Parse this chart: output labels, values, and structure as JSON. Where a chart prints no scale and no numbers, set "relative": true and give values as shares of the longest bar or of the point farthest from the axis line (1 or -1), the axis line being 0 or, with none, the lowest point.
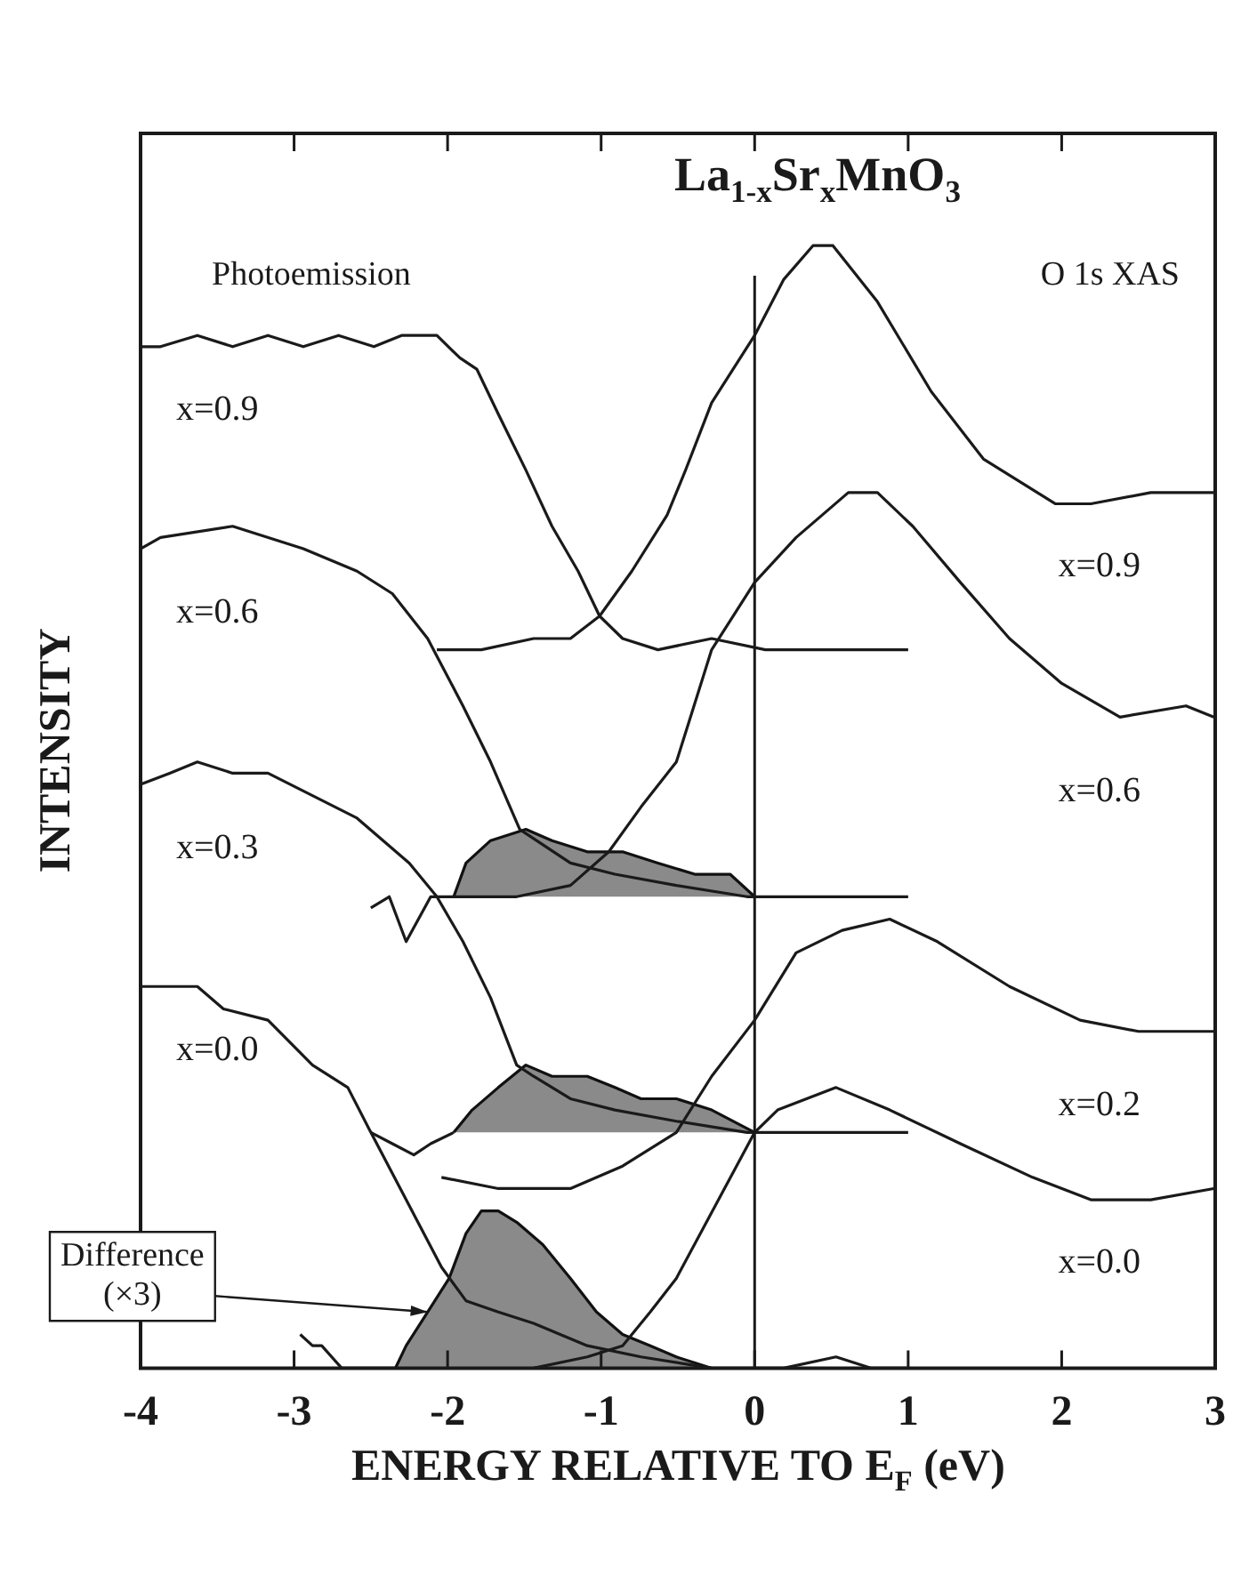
{
  "chart_data": {
    "type": "line",
    "title": "La$_{1-x}$Sr$_{x}$MnO$_{3}$",
    "xlabel": "ENERGY RELATIVE TO E$_{F}$ (eV)",
    "ylabel": "INTENSITY",
    "relative": true,
    "xlim": [
      -4,
      3
    ],
    "xticks": [
      -4,
      -3,
      -2,
      -1,
      0,
      1,
      2,
      3
    ],
    "annotations": [
      "Photoemission",
      "O 1s XAS",
      {
        "text": "Difference\n(×3)",
        "x": -2.13,
        "y": 0.05
      }
    ],
    "ref_lines": [
      {
        "axis": "x",
        "value": 0,
        "color": "#1a1a1a"
      }
    ],
    "series": [
      {
        "name": "x=0.9",
        "color": "#1a1a1a",
        "x": [
          -4,
          -3.87,
          -3.63,
          -3.4,
          -3.17,
          -2.94,
          -2.71,
          -2.48,
          -2.3,
          -2.07,
          -1.92,
          -1.81,
          -1.67,
          -1.49,
          -1.32,
          -1.15,
          -1.01,
          -0.86,
          -0.63,
          -0.28,
          0.07,
          0.76,
          1.0
        ],
        "values": [
          0.91,
          0.91,
          0.92,
          0.91,
          0.92,
          0.91,
          0.92,
          0.91,
          0.92,
          0.92,
          0.9,
          0.89,
          0.85,
          0.8,
          0.75,
          0.71,
          0.67,
          0.65,
          0.64,
          0.65,
          0.64,
          0.64,
          0.64
        ]
      },
      {
        "name": "x=0.9",
        "color": "#1a1a1a",
        "x": [
          -2.07,
          -1.78,
          -1.44,
          -1.2,
          -1.01,
          -0.8,
          -0.57,
          -0.45,
          -0.28,
          0,
          0.19,
          0.38,
          0.51,
          0.8,
          1.15,
          1.49,
          1.96,
          2.19,
          2.58,
          2.99
        ],
        "values": [
          0.64,
          0.64,
          0.65,
          0.65,
          0.67,
          0.71,
          0.76,
          0.8,
          0.86,
          0.92,
          0.97,
          1.0,
          1.0,
          0.95,
          0.87,
          0.81,
          0.77,
          0.77,
          0.78,
          0.78
        ]
      },
      {
        "name": "x=0.6",
        "color": "#1a1a1a",
        "x": [
          -4,
          -3.87,
          -3.4,
          -2.94,
          -2.59,
          -2.36,
          -2.13,
          -1.9,
          -1.72,
          -1.53,
          -1.2,
          -0.91,
          -0.51,
          -0.05,
          0.42,
          1.0
        ],
        "values": [
          0.73,
          0.74,
          0.75,
          0.73,
          0.71,
          0.69,
          0.65,
          0.59,
          0.54,
          0.48,
          0.45,
          0.44,
          0.43,
          0.42,
          0.42,
          0.42
        ]
      },
      {
        "name": "x=0.6",
        "color": "#1a1a1a",
        "x": [
          -2.5,
          -2.38,
          -2.27,
          -2.11,
          -1.96,
          -1.55,
          -1.2,
          -0.95,
          -0.74,
          -0.51,
          -0.28,
          0,
          0.27,
          0.61,
          0.8,
          1.03,
          1.34,
          1.66,
          2.0,
          2.38,
          2.81,
          2.99
        ],
        "values": [
          0.41,
          0.42,
          0.38,
          0.42,
          0.42,
          0.42,
          0.43,
          0.46,
          0.5,
          0.54,
          0.64,
          0.7,
          0.74,
          0.78,
          0.78,
          0.75,
          0.7,
          0.65,
          0.61,
          0.58,
          0.59,
          0.58
        ]
      },
      {
        "type": "area",
        "color": "#8a8a8a",
        "x": [
          -1.96,
          -1.88,
          -1.72,
          -1.49,
          -1.32,
          -1.09,
          -0.86,
          -0.63,
          -0.39,
          -0.16,
          0
        ],
        "values": [
          0.42,
          0.45,
          0.47,
          0.48,
          0.47,
          0.46,
          0.46,
          0.45,
          0.44,
          0.44,
          0.42
        ]
      },
      {
        "name": "x=0.3",
        "color": "#1a1a1a",
        "x": [
          -4,
          -3.81,
          -3.63,
          -3.4,
          -3.17,
          -2.88,
          -2.59,
          -2.42,
          -2.25,
          -2.07,
          -1.9,
          -1.72,
          -1.55,
          -1.44,
          -1.2,
          -0.91,
          -0.51,
          -0.05,
          0.42,
          1.0
        ],
        "values": [
          0.52,
          0.53,
          0.54,
          0.53,
          0.53,
          0.51,
          0.49,
          0.47,
          0.45,
          0.42,
          0.38,
          0.33,
          0.27,
          0.26,
          0.24,
          0.23,
          0.22,
          0.21,
          0.21,
          0.21
        ]
      },
      {
        "color": "#1a1a1a",
        "x": [
          -2.5,
          -2.36,
          -2.22,
          -2.11,
          -1.96
        ],
        "values": [
          0.21,
          0.2,
          0.19,
          0.2,
          0.21
        ]
      },
      {
        "type": "area",
        "color": "#8a8a8a",
        "x": [
          -1.96,
          -1.84,
          -1.67,
          -1.49,
          -1.32,
          -1.09,
          -0.91,
          -0.74,
          -0.51,
          -0.28,
          0
        ],
        "values": [
          0.21,
          0.23,
          0.25,
          0.27,
          0.26,
          0.26,
          0.25,
          0.24,
          0.24,
          0.23,
          0.21
        ]
      },
      {
        "name": "x=0.2",
        "color": "#1a1a1a",
        "x": [
          -2.04,
          -1.67,
          -1.2,
          -0.86,
          -0.51,
          -0.28,
          0,
          0.27,
          0.57,
          0.88,
          1.19,
          1.66,
          2.12,
          2.5,
          2.99
        ],
        "values": [
          0.17,
          0.16,
          0.16,
          0.18,
          0.21,
          0.26,
          0.31,
          0.37,
          0.39,
          0.4,
          0.38,
          0.34,
          0.31,
          0.3,
          0.3
        ]
      },
      {
        "name": "x=0.0",
        "color": "#1a1a1a",
        "x": [
          -4,
          -3.81,
          -3.63,
          -3.46,
          -3.17,
          -2.88,
          -2.65,
          -2.5,
          -2.27,
          -2.04,
          -1.88,
          -1.67,
          -1.44,
          -1.09,
          -0.74,
          -0.28,
          0.19,
          0.53,
          0.76,
          1.0
        ],
        "values": [
          0.34,
          0.34,
          0.34,
          0.32,
          0.31,
          0.27,
          0.25,
          0.21,
          0.15,
          0.09,
          0.06,
          0.05,
          0.04,
          0.02,
          0.01,
          0,
          0,
          0.01,
          0,
          0
        ]
      },
      {
        "color": "#1a1a1a",
        "x": [
          -2.96,
          -2.88,
          -2.82,
          -2.69,
          -2.48,
          -2.34
        ],
        "values": [
          0.03,
          0.02,
          0.02,
          0,
          0,
          0
        ]
      },
      {
        "type": "area",
        "color": "#8a8a8a",
        "x": [
          -2.34,
          -2.27,
          -2.13,
          -1.99,
          -1.88,
          -1.78,
          -1.67,
          -1.55,
          -1.38,
          -1.2,
          -1.03,
          -0.86,
          -0.68,
          -0.51,
          -0.28
        ],
        "values": [
          0,
          0.02,
          0.05,
          0.08,
          0.12,
          0.14,
          0.14,
          0.13,
          0.11,
          0.08,
          0.05,
          0.03,
          0.02,
          0.01,
          0
        ]
      },
      {
        "name": "x=0.0",
        "color": "#1a1a1a",
        "x": [
          -1.44,
          -1.09,
          -0.86,
          -0.68,
          -0.51,
          0,
          0.15,
          0.53,
          0.88,
          1.34,
          1.81,
          2.19,
          2.58,
          2.99
        ],
        "values": [
          0,
          0.01,
          0.02,
          0.05,
          0.08,
          0.21,
          0.23,
          0.25,
          0.23,
          0.2,
          0.17,
          0.15,
          0.15,
          0.16
        ]
      }
    ]
  }
}
